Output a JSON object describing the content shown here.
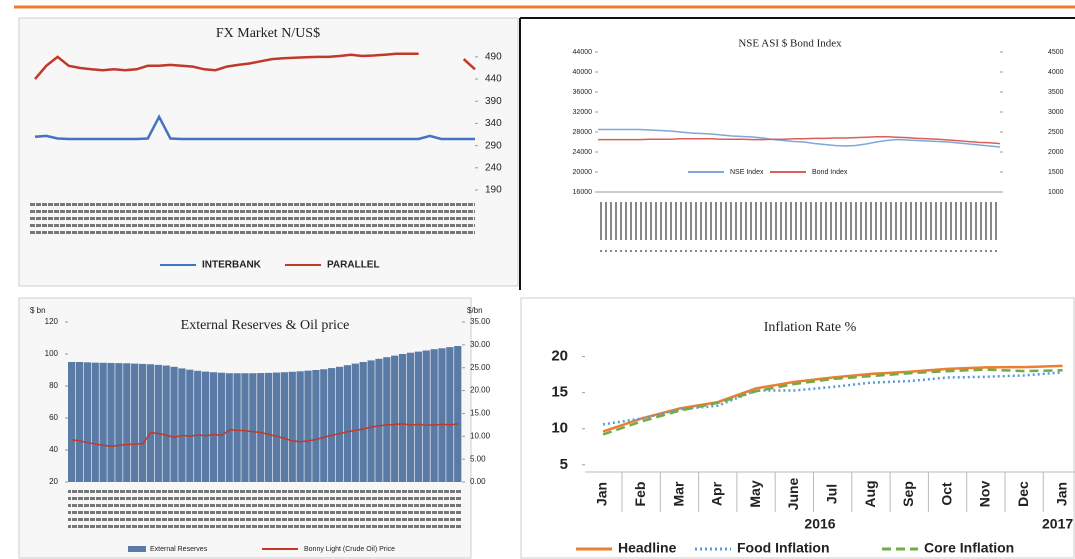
{
  "chart_data": [
    {
      "type": "line",
      "title": "FX Market N/US$",
      "ylim": [
        190,
        510
      ],
      "yticks": [
        190,
        240,
        290,
        340,
        390,
        440,
        490
      ],
      "series": [
        {
          "name": "INTERBANK",
          "color": "#4472c4",
          "values": [
            310,
            312,
            306,
            305,
            305,
            305,
            305,
            305,
            305,
            305,
            306,
            355,
            306,
            305,
            305,
            305,
            305,
            305,
            305,
            305,
            305,
            305,
            305,
            305,
            305,
            305,
            305,
            305,
            305,
            305,
            305,
            305,
            305,
            305,
            305,
            312,
            305,
            305,
            305,
            305
          ]
        },
        {
          "name": "PARALLEL",
          "color": "#c0392b",
          "values": [
            440,
            470,
            490,
            470,
            465,
            462,
            460,
            462,
            460,
            462,
            470,
            470,
            472,
            470,
            468,
            462,
            460,
            468,
            472,
            475,
            480,
            485,
            487,
            488,
            489,
            490,
            490,
            492,
            495,
            492,
            493,
            495,
            497,
            497,
            497,
            null,
            null,
            null,
            485,
            462
          ]
        }
      ]
    },
    {
      "type": "line",
      "title": "NSE ASI $ Bond Index",
      "ylim": [
        16000,
        44000
      ],
      "yticks": [
        16000,
        20000,
        24000,
        28000,
        32000,
        36000,
        40000,
        44000
      ],
      "y2lim": [
        1000,
        4500
      ],
      "y2ticks": [
        1000,
        1500,
        2000,
        2500,
        3000,
        3500,
        4000,
        4500
      ],
      "series": [
        {
          "name": "NSE Index",
          "color": "#7fa7d9",
          "values": [
            28500,
            28500,
            28500,
            28500,
            28500,
            28400,
            28300,
            28200,
            28000,
            27800,
            27700,
            27600,
            27400,
            27200,
            27100,
            27000,
            26800,
            26500,
            26300,
            26100,
            26000,
            25700,
            25500,
            25300,
            25200,
            25300,
            25600,
            26000,
            26300,
            26500,
            26400,
            26300,
            26200,
            26100,
            26000,
            25800,
            25600,
            25400,
            25200,
            25000
          ]
        },
        {
          "name": "Bond Index",
          "color": "#d9605a",
          "axis": "y2",
          "values": [
            2310,
            2310,
            2310,
            2310,
            2310,
            2320,
            2320,
            2320,
            2330,
            2330,
            2330,
            2330,
            2320,
            2320,
            2320,
            2310,
            2310,
            2320,
            2320,
            2330,
            2330,
            2340,
            2340,
            2350,
            2350,
            2360,
            2370,
            2380,
            2380,
            2370,
            2360,
            2340,
            2330,
            2320,
            2300,
            2280,
            2260,
            2240,
            2230,
            2210
          ]
        }
      ]
    },
    {
      "type": "bar",
      "title": "External Reserves & Oil price",
      "y_unit": "$ bn",
      "y2_unit": "$/bn",
      "ylim": [
        20,
        120
      ],
      "yticks": [
        20,
        40,
        60,
        80,
        100,
        120
      ],
      "y2lim": [
        0,
        35
      ],
      "y2ticks": [
        {
          "value": 0,
          "label": "0.00"
        },
        {
          "value": 5,
          "label": "5.00"
        },
        {
          "value": 10,
          "label": "10.00"
        },
        {
          "value": 15,
          "label": "15.00"
        },
        {
          "value": 20,
          "label": "20.00"
        },
        {
          "value": 25,
          "label": "25.00"
        },
        {
          "value": 30,
          "label": "30.00"
        },
        {
          "value": 35,
          "label": "35.00"
        }
      ],
      "series": [
        {
          "name": "External Reserves",
          "color": "#5a7ba6",
          "values": [
            95,
            95,
            94.8,
            94.6,
            94.5,
            94.4,
            94.3,
            94.2,
            94,
            93.8,
            93.6,
            93.2,
            92.8,
            92,
            91,
            90.2,
            89.5,
            89,
            88.6,
            88.3,
            88,
            88,
            88,
            88,
            88.1,
            88.2,
            88.4,
            88.6,
            88.9,
            89.2,
            89.6,
            90,
            90.5,
            91.2,
            92,
            93,
            94,
            95,
            96,
            97,
            98,
            99,
            100,
            100.8,
            101.5,
            102.2,
            103,
            103.6,
            104.3,
            105
          ]
        },
        {
          "name": "Bonny Light (Crude Oil) Price",
          "color": "#c0392b",
          "type": "line",
          "axis": "y2",
          "values": [
            9.2,
            9,
            8.6,
            8.3,
            8,
            7.8,
            8,
            8.2,
            8.3,
            8.4,
            10.8,
            10.6,
            10.2,
            9.8,
            10.2,
            10,
            10.3,
            10.1,
            10.4,
            10.2,
            11.4,
            11.3,
            11.2,
            11,
            10.8,
            10.4,
            10,
            9.5,
            9,
            8.8,
            9,
            9.3,
            9.8,
            10.2,
            10.6,
            11,
            11.3,
            11.6,
            12,
            12.3,
            12.5,
            12.6,
            12.7,
            12.5,
            12.6,
            12.4,
            12.5,
            12.6,
            12.5,
            12.7
          ]
        }
      ]
    },
    {
      "type": "line",
      "title": "Inflation Rate %",
      "ylim": [
        4,
        23
      ],
      "yticks": [
        5,
        10,
        15,
        20
      ],
      "categories": [
        "Jan",
        "Feb",
        "Mar",
        "Apr",
        "May",
        "June",
        "Jul",
        "Aug",
        "Sep",
        "Oct",
        "Nov",
        "Dec",
        "Jan"
      ],
      "x_groups": [
        "2016",
        "2017"
      ],
      "series": [
        {
          "name": "Headline",
          "color": "#ed7d31",
          "dash": "none",
          "values": [
            9.6,
            11.4,
            12.8,
            13.7,
            15.6,
            16.5,
            17.1,
            17.6,
            17.9,
            18.3,
            18.5,
            18.55,
            18.72
          ]
        },
        {
          "name": "Food Inflation",
          "color": "#5b9bd5",
          "dash": "2 3",
          "values": [
            10.6,
            11.4,
            12.7,
            13.2,
            15.3,
            15.3,
            15.8,
            16.4,
            16.6,
            17.1,
            17.2,
            17.4,
            17.82
          ]
        },
        {
          "name": "Core Inflation",
          "color": "#70ad47",
          "dash": "9 5",
          "values": [
            9.2,
            11,
            12.5,
            13.6,
            15.2,
            16.2,
            16.9,
            17.3,
            17.7,
            18,
            18.2,
            18,
            18.1
          ]
        }
      ]
    }
  ]
}
